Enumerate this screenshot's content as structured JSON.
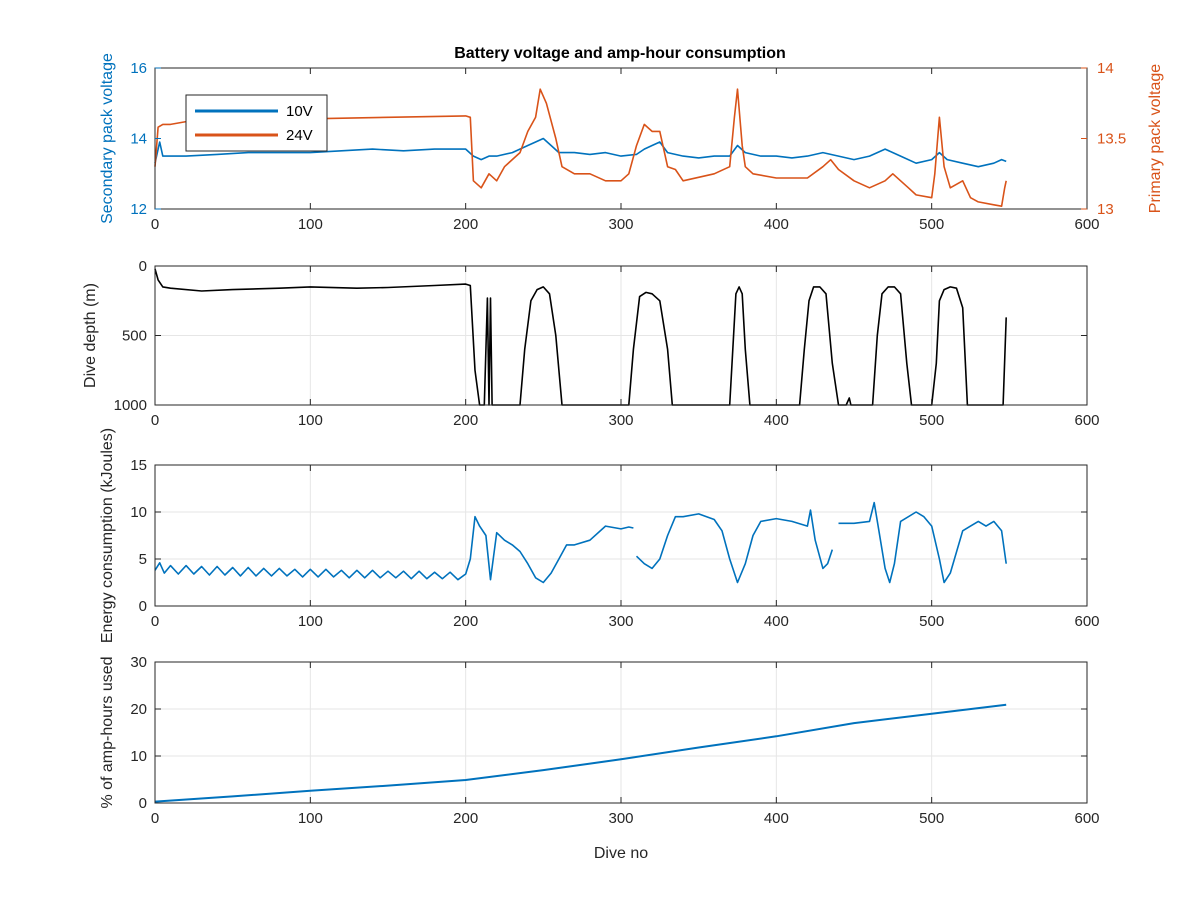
{
  "figure": {
    "title": "Battery voltage and amp-hour consumption"
  },
  "colors": {
    "blue": "#0072BD",
    "orange": "#D95319",
    "black": "#000000",
    "grid": "#e6e6e6",
    "axis": "#262626"
  },
  "chart_data": [
    {
      "type": "line",
      "title": "Battery voltage and amp-hour consumption",
      "xlabel": "",
      "ylabel": "Secondary pack voltage",
      "ylabel_right": "Primary pack voltage",
      "xlim": [
        0,
        600
      ],
      "ylim": [
        12,
        16
      ],
      "ylim_right": [
        13,
        14
      ],
      "xticks": [
        0,
        100,
        200,
        300,
        400,
        500,
        600
      ],
      "yticks": [
        12,
        14,
        16
      ],
      "yticks_right": [
        13,
        13.5,
        14
      ],
      "ytick_labels_right": [
        "13",
        "13.5",
        "14"
      ],
      "grid": false,
      "legend": {
        "placement": "top-left",
        "entries": [
          "10V",
          "24V"
        ]
      },
      "series": [
        {
          "name": "10V",
          "axis": "left",
          "color": "#0072BD",
          "x": [
            0,
            3,
            5,
            10,
            20,
            40,
            60,
            80,
            100,
            120,
            140,
            160,
            180,
            200,
            205,
            210,
            215,
            220,
            230,
            240,
            245,
            250,
            255,
            260,
            270,
            280,
            290,
            300,
            310,
            315,
            320,
            325,
            330,
            340,
            350,
            360,
            370,
            375,
            380,
            390,
            400,
            410,
            420,
            430,
            440,
            450,
            460,
            470,
            480,
            490,
            500,
            505,
            510,
            520,
            530,
            540,
            545,
            548
          ],
          "y": [
            13.3,
            13.9,
            13.5,
            13.5,
            13.5,
            13.55,
            13.6,
            13.6,
            13.6,
            13.65,
            13.7,
            13.65,
            13.7,
            13.7,
            13.5,
            13.4,
            13.5,
            13.5,
            13.6,
            13.8,
            13.9,
            14.0,
            13.8,
            13.6,
            13.6,
            13.55,
            13.6,
            13.5,
            13.55,
            13.7,
            13.8,
            13.9,
            13.6,
            13.5,
            13.45,
            13.5,
            13.5,
            13.8,
            13.6,
            13.5,
            13.5,
            13.45,
            13.5,
            13.6,
            13.5,
            13.4,
            13.5,
            13.7,
            13.5,
            13.3,
            13.4,
            13.6,
            13.4,
            13.3,
            13.2,
            13.3,
            13.4,
            13.35
          ]
        },
        {
          "name": "24V",
          "axis": "right",
          "color": "#D95319",
          "x": [
            0,
            2,
            5,
            10,
            20,
            50,
            100,
            150,
            200,
            203,
            205,
            210,
            215,
            220,
            225,
            235,
            240,
            245,
            248,
            252,
            258,
            262,
            270,
            280,
            290,
            300,
            305,
            310,
            315,
            320,
            325,
            330,
            335,
            340,
            360,
            370,
            373,
            375,
            378,
            380,
            385,
            400,
            420,
            430,
            435,
            440,
            450,
            460,
            470,
            475,
            480,
            485,
            490,
            500,
            502,
            505,
            508,
            512,
            520,
            525,
            530,
            540,
            545,
            547,
            548
          ],
          "y": [
            13.3,
            13.58,
            13.6,
            13.6,
            13.62,
            13.63,
            13.64,
            13.65,
            13.66,
            13.65,
            13.2,
            13.15,
            13.25,
            13.2,
            13.3,
            13.4,
            13.55,
            13.65,
            13.85,
            13.75,
            13.5,
            13.3,
            13.25,
            13.25,
            13.2,
            13.2,
            13.25,
            13.45,
            13.6,
            13.55,
            13.55,
            13.3,
            13.28,
            13.2,
            13.25,
            13.3,
            13.65,
            13.85,
            13.45,
            13.3,
            13.25,
            13.22,
            13.22,
            13.3,
            13.35,
            13.28,
            13.2,
            13.15,
            13.2,
            13.25,
            13.2,
            13.15,
            13.1,
            13.08,
            13.25,
            13.65,
            13.3,
            13.15,
            13.2,
            13.08,
            13.05,
            13.03,
            13.02,
            13.15,
            13.2
          ]
        }
      ]
    },
    {
      "type": "line",
      "xlabel": "",
      "ylabel": "Dive depth (m)",
      "xlim": [
        0,
        600
      ],
      "ylim": [
        0,
        1000
      ],
      "y_reversed": true,
      "xticks": [
        0,
        100,
        200,
        300,
        400,
        500,
        600
      ],
      "yticks": [
        0,
        500,
        1000
      ],
      "grid": true,
      "series": [
        {
          "color": "#000000",
          "x": [
            0,
            2,
            5,
            10,
            30,
            50,
            80,
            100,
            130,
            150,
            180,
            200,
            203,
            206,
            209,
            212,
            214,
            215,
            216,
            217,
            220,
            235,
            238,
            242,
            246,
            250,
            254,
            258,
            262,
            265,
            300,
            305,
            308,
            312,
            316,
            320,
            325,
            330,
            333,
            336,
            360,
            370,
            372,
            374,
            376,
            378,
            380,
            383,
            386,
            415,
            418,
            421,
            424,
            428,
            432,
            436,
            440,
            445,
            447,
            448,
            450,
            462,
            465,
            468,
            472,
            476,
            480,
            484,
            487,
            500,
            503,
            505,
            508,
            512,
            516,
            520,
            523,
            526,
            540,
            545,
            546,
            548
          ],
          "y": [
            20,
            100,
            150,
            160,
            180,
            170,
            160,
            150,
            160,
            155,
            140,
            130,
            140,
            750,
            1000,
            1000,
            230,
            1000,
            230,
            1000,
            1000,
            1000,
            600,
            250,
            170,
            150,
            200,
            500,
            1000,
            1000,
            1000,
            1000,
            600,
            220,
            190,
            200,
            250,
            600,
            1000,
            1000,
            1000,
            1000,
            600,
            200,
            150,
            200,
            600,
            1000,
            1000,
            1000,
            600,
            250,
            150,
            150,
            200,
            700,
            1000,
            1000,
            950,
            1000,
            1000,
            1000,
            500,
            200,
            150,
            150,
            200,
            700,
            1000,
            1000,
            700,
            250,
            170,
            150,
            160,
            300,
            1000,
            1000,
            1000,
            1000,
            1000,
            370
          ]
        }
      ]
    },
    {
      "type": "line",
      "xlabel": "",
      "ylabel": "Energy consumption (kJoules)",
      "xlim": [
        0,
        600
      ],
      "ylim": [
        0,
        15
      ],
      "xticks": [
        0,
        100,
        200,
        300,
        400,
        500,
        600
      ],
      "yticks": [
        0,
        5,
        10,
        15
      ],
      "grid": true,
      "series": [
        {
          "color": "#0072BD",
          "x": [
            0,
            3,
            6,
            10,
            15,
            20,
            25,
            30,
            35,
            40,
            45,
            50,
            55,
            60,
            65,
            70,
            75,
            80,
            85,
            90,
            95,
            100,
            105,
            110,
            115,
            120,
            125,
            130,
            135,
            140,
            145,
            150,
            155,
            160,
            165,
            170,
            175,
            180,
            185,
            190,
            195,
            200,
            203,
            206,
            209,
            213,
            216,
            220,
            225,
            230,
            235,
            240,
            245,
            250,
            255,
            260,
            265,
            270,
            280,
            290,
            300,
            305,
            308,
            null,
            310,
            315,
            320,
            325,
            330,
            335,
            340,
            350,
            360,
            365,
            370,
            375,
            380,
            385,
            390,
            400,
            410,
            420,
            422,
            425,
            430,
            433,
            436,
            null,
            440,
            450,
            460,
            463,
            466,
            470,
            473,
            476,
            480,
            490,
            495,
            500,
            505,
            508,
            512,
            520,
            525,
            530,
            535,
            540,
            545,
            548
          ],
          "y": [
            3.8,
            4.6,
            3.5,
            4.3,
            3.4,
            4.3,
            3.4,
            4.2,
            3.3,
            4.2,
            3.3,
            4.1,
            3.2,
            4.1,
            3.2,
            4.0,
            3.2,
            4.0,
            3.2,
            3.9,
            3.1,
            3.9,
            3.1,
            3.9,
            3.1,
            3.8,
            3.0,
            3.8,
            3.0,
            3.8,
            3.0,
            3.7,
            3.0,
            3.7,
            2.9,
            3.7,
            2.9,
            3.6,
            2.9,
            3.6,
            2.8,
            3.4,
            5.0,
            9.5,
            8.5,
            7.5,
            2.8,
            7.8,
            7.0,
            6.5,
            5.8,
            4.5,
            3.0,
            2.5,
            3.5,
            5.0,
            6.5,
            6.5,
            7.0,
            8.5,
            8.2,
            8.4,
            8.3,
            null,
            5.3,
            4.5,
            4.0,
            5.0,
            7.5,
            9.5,
            9.5,
            9.8,
            9.2,
            8.0,
            5.0,
            2.5,
            4.5,
            7.5,
            9.0,
            9.3,
            9.0,
            8.5,
            10.2,
            7.0,
            4.0,
            4.5,
            6.0,
            null,
            8.8,
            8.8,
            9.0,
            11.0,
            8.0,
            4.0,
            2.5,
            4.5,
            9.0,
            10.0,
            9.5,
            8.5,
            5.0,
            2.5,
            3.5,
            8.0,
            8.5,
            9.0,
            8.5,
            9.0,
            8.0,
            4.5
          ]
        }
      ]
    },
    {
      "type": "line",
      "xlabel": "Dive no",
      "ylabel": "% of amp-hours used",
      "xlim": [
        0,
        600
      ],
      "ylim": [
        0,
        30
      ],
      "xticks": [
        0,
        100,
        200,
        300,
        400,
        500,
        600
      ],
      "yticks": [
        0,
        10,
        20,
        30
      ],
      "grid": true,
      "series": [
        {
          "color": "#0072BD",
          "x": [
            0,
            50,
            100,
            150,
            200,
            250,
            300,
            350,
            400,
            450,
            500,
            548
          ],
          "y": [
            0.3,
            1.4,
            2.6,
            3.7,
            4.9,
            7.0,
            9.3,
            11.8,
            14.2,
            17.0,
            19.0,
            20.9
          ]
        }
      ]
    }
  ]
}
